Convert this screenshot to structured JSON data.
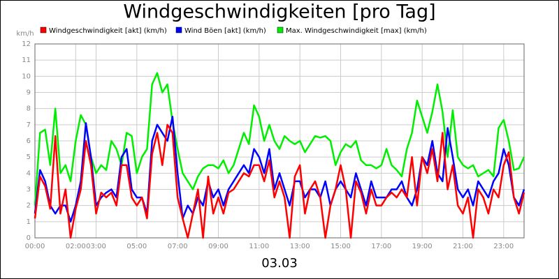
{
  "chart_data": {
    "type": "line",
    "title": "Windgeschwindigkeiten [pro Tag]",
    "y_unit": "km/h",
    "x_label": "03.03",
    "x": [
      0,
      0.25,
      0.5,
      0.75,
      1,
      1.25,
      1.5,
      1.75,
      2,
      2.25,
      2.5,
      2.75,
      3,
      3.25,
      3.5,
      3.75,
      4,
      4.25,
      4.5,
      4.75,
      5,
      5.25,
      5.5,
      5.75,
      6,
      6.25,
      6.5,
      6.75,
      7,
      7.25,
      7.5,
      7.75,
      8,
      8.25,
      8.5,
      8.75,
      9,
      9.25,
      9.5,
      9.75,
      10,
      10.25,
      10.5,
      10.75,
      11,
      11.25,
      11.5,
      11.75,
      12,
      12.25,
      12.5,
      12.75,
      13,
      13.25,
      13.5,
      13.75,
      14,
      14.25,
      14.5,
      14.75,
      15,
      15.25,
      15.5,
      15.75,
      16,
      16.25,
      16.5,
      16.75,
      17,
      17.25,
      17.5,
      17.75,
      18,
      18.25,
      18.5,
      18.75,
      19,
      19.25,
      19.5,
      19.75,
      20,
      20.25,
      20.5,
      20.75,
      21,
      21.25,
      21.5,
      21.75,
      22,
      22.25,
      22.5,
      22.75,
      23,
      23.25,
      23.5,
      23.75,
      24
    ],
    "series": [
      {
        "name": "Windgeschwindigkeit [akt] (km/h)",
        "color": "#ff0000",
        "values": [
          1.2,
          3.8,
          3.2,
          1.8,
          6.3,
          1.5,
          3.0,
          0,
          1.8,
          3.0,
          6.0,
          4.5,
          1.5,
          2.8,
          2.5,
          2.8,
          2.0,
          4.5,
          4.5,
          2.5,
          2.0,
          2.5,
          1.2,
          5.2,
          6.5,
          4.5,
          7.0,
          6.5,
          2.5,
          1.2,
          0,
          1.5,
          3.0,
          0,
          3.8,
          1.5,
          2.5,
          1.5,
          2.8,
          3.0,
          3.5,
          4.0,
          3.8,
          4.5,
          4.5,
          3.5,
          4.8,
          2.5,
          3.5,
          2.5,
          0,
          3.8,
          4.5,
          1.5,
          3.0,
          3.5,
          2.5,
          0,
          2.0,
          3.0,
          4.5,
          3.0,
          0,
          3.5,
          2.8,
          1.5,
          3.0,
          2.0,
          2.0,
          2.5,
          2.8,
          2.5,
          3.0,
          2.5,
          5.0,
          2.0,
          5.0,
          4.0,
          5.5,
          3.5,
          6.5,
          3.0,
          4.5,
          2.0,
          1.5,
          2.5,
          0,
          3.0,
          2.5,
          1.5,
          3.0,
          2.5,
          4.5,
          5.3,
          2.5,
          1.5,
          2.8
        ]
      },
      {
        "name": "Wind Böen [akt] (km/h)",
        "color": "#0000ff",
        "values": [
          1.5,
          4.2,
          3.5,
          2.0,
          1.5,
          2.0,
          2.0,
          1.0,
          2.0,
          3.5,
          7.1,
          5.0,
          2.0,
          2.5,
          2.8,
          3.0,
          2.5,
          5.0,
          5.5,
          3.0,
          2.5,
          2.5,
          1.5,
          6.0,
          7.0,
          6.5,
          6.0,
          7.5,
          4.0,
          1.2,
          2.0,
          1.5,
          2.5,
          2.0,
          3.5,
          2.5,
          3.0,
          2.0,
          3.0,
          3.5,
          4.0,
          4.5,
          4.0,
          5.5,
          5.0,
          4.0,
          5.5,
          3.0,
          4.0,
          3.0,
          2.0,
          3.5,
          3.5,
          2.5,
          3.0,
          3.0,
          2.5,
          3.5,
          2.0,
          3.0,
          3.5,
          3.0,
          2.5,
          4.0,
          3.0,
          2.0,
          3.5,
          2.5,
          2.5,
          2.5,
          3.0,
          3.0,
          3.5,
          2.5,
          2.0,
          3.0,
          5.0,
          4.5,
          6.0,
          4.0,
          3.5,
          6.8,
          5.0,
          3.0,
          2.5,
          3.0,
          2.0,
          3.5,
          3.0,
          2.5,
          3.5,
          4.0,
          5.5,
          4.5,
          2.5,
          2.0,
          3.0
        ]
      },
      {
        "name": "Max. Windgeschwindigkeit [max] (km/h)",
        "color": "#00ee00",
        "values": [
          2.0,
          6.5,
          6.7,
          4.5,
          8.0,
          4.0,
          4.5,
          3.5,
          6.0,
          7.6,
          7.0,
          5.0,
          4.0,
          4.5,
          4.2,
          6.0,
          5.5,
          4.5,
          6.5,
          6.3,
          4.0,
          5.0,
          5.5,
          9.5,
          10.2,
          9.0,
          9.5,
          7.2,
          5.5,
          4.0,
          3.5,
          3.0,
          3.8,
          4.3,
          4.5,
          4.5,
          4.3,
          4.8,
          4.0,
          4.5,
          5.5,
          6.5,
          5.8,
          8.2,
          7.5,
          6.0,
          7.0,
          6.0,
          5.5,
          6.3,
          6.0,
          5.8,
          6.0,
          5.3,
          5.8,
          6.3,
          6.2,
          6.3,
          6.0,
          4.5,
          5.3,
          5.8,
          5.6,
          6.0,
          4.8,
          4.5,
          4.5,
          4.3,
          4.5,
          5.5,
          4.5,
          4.2,
          3.8,
          5.5,
          6.5,
          8.5,
          7.5,
          6.5,
          7.8,
          9.5,
          7.8,
          5.0,
          7.9,
          5.0,
          4.5,
          4.3,
          4.5,
          3.8,
          4.0,
          4.2,
          3.8,
          6.8,
          7.3,
          6.0,
          4.2,
          4.3,
          5.0
        ]
      }
    ],
    "xlim": [
      0,
      24
    ],
    "xticks": [
      {
        "value": 0,
        "label": "00:00"
      },
      {
        "value": 2,
        "label": "02:00"
      },
      {
        "value": 3,
        "label": "03:00"
      },
      {
        "value": 5,
        "label": "05:00"
      },
      {
        "value": 7,
        "label": "07:00"
      },
      {
        "value": 9,
        "label": "09:00"
      },
      {
        "value": 11,
        "label": "11:00"
      },
      {
        "value": 13,
        "label": "13:00"
      },
      {
        "value": 15,
        "label": "15:00"
      },
      {
        "value": 17,
        "label": "17:00"
      },
      {
        "value": 19,
        "label": "19:00"
      },
      {
        "value": 21,
        "label": "21:00"
      },
      {
        "value": 23,
        "label": "23:00"
      }
    ],
    "ylim": [
      0,
      12
    ],
    "yticks": [
      0,
      1,
      2,
      3,
      4,
      5,
      6,
      7,
      8,
      9,
      10,
      11,
      12
    ],
    "grid": true
  }
}
